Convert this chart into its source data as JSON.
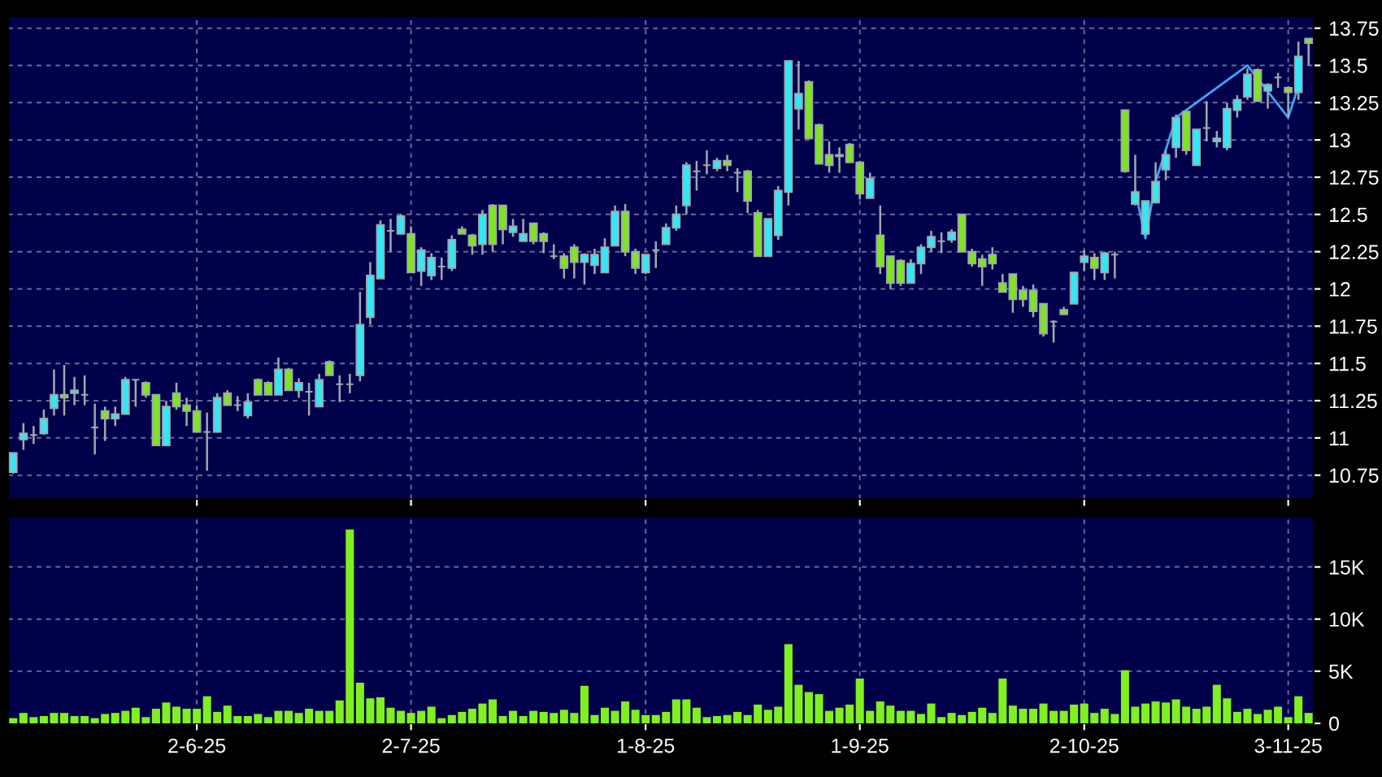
{
  "chart_data": [
    {
      "type": "candlestick",
      "categories": [
        null,
        null,
        null,
        null,
        null,
        null,
        null,
        null,
        null,
        null,
        null,
        null,
        null,
        null,
        null,
        null,
        null,
        null,
        null,
        null,
        null,
        null,
        null,
        null,
        null,
        null,
        null,
        null,
        null,
        null,
        null,
        null,
        null,
        null,
        null,
        null,
        null,
        null,
        null,
        null,
        null,
        null,
        null,
        null,
        null,
        null,
        null,
        null,
        null,
        null,
        null,
        null,
        null,
        null,
        null,
        null,
        null,
        null,
        null,
        null,
        null,
        null,
        null,
        null,
        null,
        null,
        null,
        null,
        null,
        null,
        null,
        null,
        null,
        null,
        null,
        null,
        null,
        null,
        null,
        null,
        null,
        null,
        null,
        null,
        null,
        null,
        null,
        null,
        null,
        null,
        null,
        null,
        null,
        null,
        null,
        null,
        null,
        null,
        null,
        null,
        null,
        null,
        null,
        null,
        null,
        null,
        null,
        null,
        null,
        null,
        null,
        null,
        null,
        null,
        null,
        null,
        null,
        null,
        null,
        null,
        null,
        null,
        null,
        null,
        null,
        null,
        null,
        null
      ],
      "ohlc": [
        [
          10.77,
          10.9,
          10.76,
          10.9
        ],
        [
          10.99,
          11.1,
          10.92,
          11.03
        ],
        [
          11.02,
          11.08,
          10.96,
          11.02
        ],
        [
          11.03,
          11.19,
          11.02,
          11.13
        ],
        [
          11.2,
          11.46,
          11.15,
          11.29
        ],
        [
          11.29,
          11.49,
          11.15,
          11.27
        ],
        [
          11.3,
          11.41,
          11.22,
          11.32
        ],
        [
          11.29,
          11.42,
          11.22,
          11.29
        ],
        [
          11.07,
          11.23,
          10.89,
          11.07
        ],
        [
          11.18,
          11.21,
          10.98,
          11.13
        ],
        [
          11.13,
          11.21,
          11.08,
          11.16
        ],
        [
          11.16,
          11.41,
          11.16,
          11.39
        ],
        [
          11.39,
          11.39,
          11.21,
          11.39
        ],
        [
          11.37,
          11.38,
          11.27,
          11.29
        ],
        [
          11.29,
          11.29,
          10.95,
          10.95
        ],
        [
          10.95,
          11.25,
          10.95,
          11.21
        ],
        [
          11.3,
          11.37,
          11.19,
          11.21
        ],
        [
          11.22,
          11.27,
          11.08,
          11.18
        ],
        [
          11.18,
          11.22,
          11.04,
          11.04
        ],
        [
          11.04,
          11.17,
          10.78,
          11.04
        ],
        [
          11.04,
          11.3,
          11.04,
          11.27
        ],
        [
          11.3,
          11.32,
          11.22,
          11.22
        ],
        [
          11.22,
          11.28,
          11.18,
          11.22
        ],
        [
          11.15,
          11.3,
          11.13,
          11.24
        ],
        [
          11.39,
          11.4,
          11.29,
          11.29
        ],
        [
          11.37,
          11.38,
          11.29,
          11.29
        ],
        [
          11.29,
          11.54,
          11.29,
          11.46
        ],
        [
          11.46,
          11.47,
          11.32,
          11.32
        ],
        [
          11.32,
          11.4,
          11.27,
          11.37
        ],
        [
          11.31,
          11.37,
          11.15,
          11.31
        ],
        [
          11.21,
          11.43,
          11.21,
          11.39
        ],
        [
          11.51,
          11.52,
          11.42,
          11.42
        ],
        [
          11.36,
          11.42,
          11.24,
          11.36
        ],
        [
          11.36,
          11.43,
          11.3,
          11.36
        ],
        [
          11.42,
          11.98,
          11.38,
          11.76
        ],
        [
          11.81,
          12.18,
          11.76,
          12.09
        ],
        [
          12.07,
          12.46,
          12.07,
          12.43
        ],
        [
          12.39,
          12.47,
          12.25,
          12.39
        ],
        [
          12.37,
          12.5,
          12.37,
          12.49
        ],
        [
          12.37,
          12.42,
          12.11,
          12.11
        ],
        [
          12.12,
          12.28,
          12.02,
          12.26
        ],
        [
          12.09,
          12.24,
          12.06,
          12.21
        ],
        [
          12.15,
          12.21,
          12.06,
          12.15
        ],
        [
          12.14,
          12.36,
          12.12,
          12.33
        ],
        [
          12.4,
          12.42,
          12.37,
          12.37
        ],
        [
          12.36,
          12.37,
          12.23,
          12.29
        ],
        [
          12.3,
          12.53,
          12.23,
          12.5
        ],
        [
          12.56,
          12.57,
          12.25,
          12.3
        ],
        [
          12.56,
          12.56,
          12.3,
          12.4
        ],
        [
          12.38,
          12.47,
          12.35,
          12.42
        ],
        [
          12.32,
          12.47,
          12.32,
          12.37
        ],
        [
          12.44,
          12.44,
          12.3,
          12.32
        ],
        [
          12.37,
          12.38,
          12.24,
          12.32
        ],
        [
          12.22,
          12.3,
          12.2,
          12.22
        ],
        [
          12.22,
          12.24,
          12.07,
          12.14
        ],
        [
          12.28,
          12.3,
          12.07,
          12.18
        ],
        [
          12.18,
          12.24,
          12.03,
          12.23
        ],
        [
          12.16,
          12.27,
          12.1,
          12.23
        ],
        [
          12.11,
          12.34,
          12.11,
          12.28
        ],
        [
          12.29,
          12.56,
          12.29,
          12.52
        ],
        [
          12.52,
          12.57,
          12.22,
          12.25
        ],
        [
          12.25,
          12.27,
          12.1,
          12.14
        ],
        [
          12.11,
          12.23,
          12.1,
          12.23
        ],
        [
          12.26,
          12.32,
          12.14,
          12.26
        ],
        [
          12.3,
          12.44,
          12.3,
          12.41
        ],
        [
          12.41,
          12.56,
          12.39,
          12.5
        ],
        [
          12.56,
          12.85,
          12.5,
          12.83
        ],
        [
          12.79,
          12.86,
          12.66,
          12.79
        ],
        [
          12.83,
          12.93,
          12.77,
          12.83
        ],
        [
          12.81,
          12.88,
          12.79,
          12.86
        ],
        [
          12.86,
          12.9,
          12.79,
          12.83
        ],
        [
          12.78,
          12.81,
          12.65,
          12.78
        ],
        [
          12.79,
          12.8,
          12.51,
          12.59
        ],
        [
          12.51,
          12.53,
          12.22,
          12.22
        ],
        [
          12.22,
          12.47,
          12.22,
          12.47
        ],
        [
          12.36,
          12.69,
          12.33,
          12.66
        ],
        [
          12.65,
          13.53,
          12.56,
          13.53
        ],
        [
          13.21,
          13.53,
          13.07,
          13.31
        ],
        [
          13.39,
          13.4,
          13.01,
          13.01
        ],
        [
          13.1,
          13.11,
          12.84,
          12.84
        ],
        [
          12.9,
          12.99,
          12.78,
          12.83
        ],
        [
          12.89,
          12.95,
          12.78,
          12.9
        ],
        [
          12.97,
          12.98,
          12.85,
          12.85
        ],
        [
          12.85,
          12.86,
          12.6,
          12.64
        ],
        [
          12.61,
          12.78,
          12.61,
          12.74
        ],
        [
          12.36,
          12.56,
          12.1,
          12.15
        ],
        [
          12.22,
          12.22,
          12.0,
          12.04
        ],
        [
          12.19,
          12.2,
          12.02,
          12.04
        ],
        [
          12.04,
          12.2,
          12.04,
          12.17
        ],
        [
          12.17,
          12.3,
          12.1,
          12.28
        ],
        [
          12.28,
          12.39,
          12.25,
          12.35
        ],
        [
          12.32,
          12.38,
          12.24,
          12.32
        ],
        [
          12.33,
          12.4,
          12.31,
          12.38
        ],
        [
          12.5,
          12.5,
          12.25,
          12.25
        ],
        [
          12.25,
          12.27,
          12.15,
          12.17
        ],
        [
          12.2,
          12.23,
          12.02,
          12.15
        ],
        [
          12.23,
          12.28,
          12.13,
          12.17
        ],
        [
          12.04,
          12.1,
          11.98,
          11.98
        ],
        [
          12.1,
          12.1,
          11.84,
          11.93
        ],
        [
          11.99,
          12.02,
          11.88,
          11.93
        ],
        [
          11.99,
          12.03,
          11.81,
          11.85
        ],
        [
          11.9,
          11.9,
          11.68,
          11.7
        ],
        [
          11.78,
          11.79,
          11.64,
          11.78
        ],
        [
          11.86,
          11.88,
          11.83,
          11.83
        ],
        [
          11.9,
          12.11,
          11.9,
          12.11
        ],
        [
          12.18,
          12.26,
          12.12,
          12.22
        ],
        [
          12.21,
          12.24,
          12.06,
          12.14
        ],
        [
          12.11,
          12.25,
          12.06,
          12.24
        ],
        [
          12.23,
          12.25,
          12.07,
          12.23
        ],
        [
          13.2,
          13.2,
          12.78,
          12.79
        ],
        [
          12.57,
          12.9,
          12.56,
          12.65
        ],
        [
          12.37,
          12.59,
          12.37,
          12.59
        ],
        [
          12.58,
          12.85,
          12.58,
          12.72
        ],
        [
          12.8,
          12.93,
          12.73,
          12.9
        ],
        [
          12.95,
          13.17,
          12.88,
          13.15
        ],
        [
          13.19,
          13.2,
          12.9,
          12.93
        ],
        [
          12.83,
          13.07,
          12.83,
          13.07
        ],
        [
          13.08,
          13.26,
          12.99,
          13.08
        ],
        [
          12.99,
          13.06,
          12.95,
          13.01
        ],
        [
          12.95,
          13.25,
          12.93,
          13.21
        ],
        [
          13.2,
          13.3,
          13.15,
          13.27
        ],
        [
          13.29,
          13.48,
          13.27,
          13.44
        ],
        [
          13.47,
          13.48,
          13.26,
          13.26
        ],
        [
          13.33,
          13.38,
          13.21,
          13.37
        ],
        [
          13.42,
          13.45,
          13.35,
          13.42
        ],
        [
          13.35,
          13.36,
          13.15,
          13.32
        ],
        [
          13.32,
          13.66,
          13.27,
          13.56
        ],
        [
          13.68,
          13.68,
          13.5,
          13.65
        ]
      ],
      "colors": [
        "#33e8f5",
        "#33e8f5",
        "#a0a8b0",
        "#33e8f5",
        "#33e8f5",
        "#7ee51f",
        "#33e8f5",
        "#a0a8b0",
        "#a0a8b0",
        "#7ee51f",
        "#33e8f5",
        "#33e8f5",
        "#a0a8b0",
        "#7ee51f",
        "#7ee51f",
        "#33e8f5",
        "#7ee51f",
        "#7ee51f",
        "#7ee51f",
        "#a0a8b0",
        "#33e8f5",
        "#7ee51f",
        "#a0a8b0",
        "#33e8f5",
        "#7ee51f",
        "#7ee51f",
        "#33e8f5",
        "#7ee51f",
        "#33e8f5",
        "#a0a8b0",
        "#33e8f5",
        "#7ee51f",
        "#a0a8b0",
        "#a0a8b0",
        "#33e8f5",
        "#33e8f5",
        "#33e8f5",
        "#a0a8b0",
        "#33e8f5",
        "#7ee51f",
        "#33e8f5",
        "#33e8f5",
        "#a0a8b0",
        "#33e8f5",
        "#7ee51f",
        "#7ee51f",
        "#33e8f5",
        "#7ee51f",
        "#7ee51f",
        "#33e8f5",
        "#33e8f5",
        "#7ee51f",
        "#7ee51f",
        "#a0a8b0",
        "#7ee51f",
        "#7ee51f",
        "#33e8f5",
        "#33e8f5",
        "#33e8f5",
        "#33e8f5",
        "#7ee51f",
        "#7ee51f",
        "#33e8f5",
        "#a0a8b0",
        "#33e8f5",
        "#33e8f5",
        "#33e8f5",
        "#a0a8b0",
        "#a0a8b0",
        "#33e8f5",
        "#7ee51f",
        "#a0a8b0",
        "#7ee51f",
        "#7ee51f",
        "#33e8f5",
        "#33e8f5",
        "#33e8f5",
        "#33e8f5",
        "#7ee51f",
        "#7ee51f",
        "#7ee51f",
        "#33e8f5",
        "#7ee51f",
        "#7ee51f",
        "#33e8f5",
        "#7ee51f",
        "#7ee51f",
        "#7ee51f",
        "#33e8f5",
        "#33e8f5",
        "#33e8f5",
        "#a0a8b0",
        "#33e8f5",
        "#7ee51f",
        "#7ee51f",
        "#7ee51f",
        "#7ee51f",
        "#7ee51f",
        "#7ee51f",
        "#7ee51f",
        "#7ee51f",
        "#7ee51f",
        "#a0a8b0",
        "#7ee51f",
        "#33e8f5",
        "#33e8f5",
        "#7ee51f",
        "#33e8f5",
        "#a0a8b0",
        "#7ee51f",
        "#33e8f5",
        "#33e8f5",
        "#33e8f5",
        "#33e8f5",
        "#33e8f5",
        "#7ee51f",
        "#33e8f5",
        "#a0a8b0",
        "#33e8f5",
        "#33e8f5",
        "#33e8f5",
        "#33e8f5",
        "#7ee51f",
        "#33e8f5",
        "#a0a8b0",
        "#7ee51f",
        "#33e8f5",
        "#7ee51f"
      ],
      "series": [
        {
          "type": "line",
          "color": "#3aa8ff",
          "values": [
            null,
            null,
            null,
            null,
            null,
            null,
            null,
            null,
            null,
            null,
            null,
            null,
            null,
            null,
            null,
            null,
            null,
            null,
            null,
            null,
            null,
            null,
            null,
            null,
            null,
            null,
            null,
            null,
            null,
            null,
            null,
            null,
            null,
            null,
            null,
            null,
            null,
            null,
            null,
            null,
            null,
            null,
            null,
            null,
            null,
            null,
            null,
            null,
            null,
            null,
            null,
            null,
            null,
            null,
            null,
            null,
            null,
            null,
            null,
            null,
            null,
            null,
            null,
            null,
            null,
            null,
            null,
            null,
            null,
            null,
            null,
            null,
            null,
            null,
            null,
            null,
            null,
            null,
            null,
            null,
            null,
            null,
            null,
            null,
            null,
            null,
            null,
            null,
            null,
            null,
            null,
            null,
            null,
            null,
            null,
            null,
            null,
            null,
            null,
            null,
            null,
            null,
            null,
            null,
            null,
            null,
            null,
            null,
            null,
            null,
            12.66,
            12.34,
            12.72,
            null,
            13.15,
            null,
            null,
            null,
            null,
            null,
            null,
            13.5,
            null,
            null,
            null,
            13.15,
            13.36,
            null
          ]
        }
      ],
      "ylim": [
        10.59,
        13.83
      ],
      "yticks": [
        10.75,
        11,
        11.25,
        11.5,
        11.75,
        12,
        12.25,
        12.5,
        12.75,
        13,
        13.25,
        13.5,
        13.75
      ],
      "grid": true,
      "tick_labels": "y"
    },
    {
      "type": "bar",
      "color": "#80f020",
      "categories": [
        null,
        null,
        null,
        null,
        null,
        null,
        null,
        null,
        null,
        null,
        null,
        null,
        null,
        null,
        null,
        null,
        null,
        null,
        "2-6-25",
        null,
        null,
        null,
        null,
        null,
        null,
        null,
        null,
        null,
        null,
        null,
        null,
        null,
        null,
        null,
        null,
        null,
        null,
        null,
        null,
        "2-7-25",
        null,
        null,
        null,
        null,
        null,
        null,
        null,
        null,
        null,
        null,
        null,
        null,
        null,
        null,
        null,
        null,
        null,
        null,
        null,
        null,
        null,
        null,
        "1-8-25",
        null,
        null,
        null,
        null,
        null,
        null,
        null,
        null,
        null,
        null,
        null,
        null,
        null,
        null,
        null,
        null,
        null,
        null,
        null,
        null,
        "1-9-25",
        null,
        null,
        null,
        null,
        null,
        null,
        null,
        null,
        null,
        null,
        null,
        null,
        null,
        null,
        null,
        null,
        null,
        null,
        null,
        null,
        null,
        "2-10-25",
        null,
        null,
        null,
        null,
        null,
        null,
        null,
        null,
        null,
        null,
        null,
        null,
        null,
        null,
        null,
        null,
        null,
        null,
        null,
        "3-11-25",
        null,
        null
      ],
      "values": [
        500,
        1000,
        600,
        700,
        1000,
        1000,
        700,
        700,
        500,
        900,
        1000,
        1200,
        1500,
        600,
        1400,
        2000,
        1600,
        1400,
        1400,
        2600,
        1100,
        1700,
        700,
        700,
        900,
        600,
        1200,
        1200,
        1000,
        1400,
        1200,
        1200,
        2200,
        18600,
        3900,
        2400,
        2500,
        1500,
        1200,
        1000,
        1200,
        1600,
        500,
        800,
        1100,
        1400,
        1900,
        2300,
        700,
        1200,
        700,
        1200,
        1100,
        1000,
        1300,
        1000,
        3600,
        800,
        1500,
        1200,
        2100,
        1300,
        800,
        800,
        1100,
        2300,
        2300,
        1500,
        600,
        700,
        800,
        1100,
        800,
        1800,
        1300,
        1600,
        7600,
        3700,
        3000,
        2800,
        1200,
        1500,
        1800,
        4300,
        1200,
        2100,
        1700,
        1200,
        1200,
        900,
        1900,
        600,
        1000,
        800,
        1100,
        1500,
        1000,
        4300,
        1700,
        1400,
        1400,
        1900,
        1200,
        1200,
        1800,
        1900,
        1000,
        1400,
        900,
        5100,
        1600,
        1900,
        2100,
        2000,
        2300,
        1600,
        1400,
        1600,
        3700,
        2400,
        1100,
        1400,
        900,
        1300,
        1600,
        600,
        2600,
        1000
      ],
      "ylim": [
        0,
        19800
      ],
      "yticks": [
        0,
        {
          "value": 5000,
          "label": "5K"
        },
        {
          "value": 10000,
          "label": "10K"
        },
        {
          "value": 15000,
          "label": "15K"
        }
      ],
      "grid": true
    }
  ]
}
